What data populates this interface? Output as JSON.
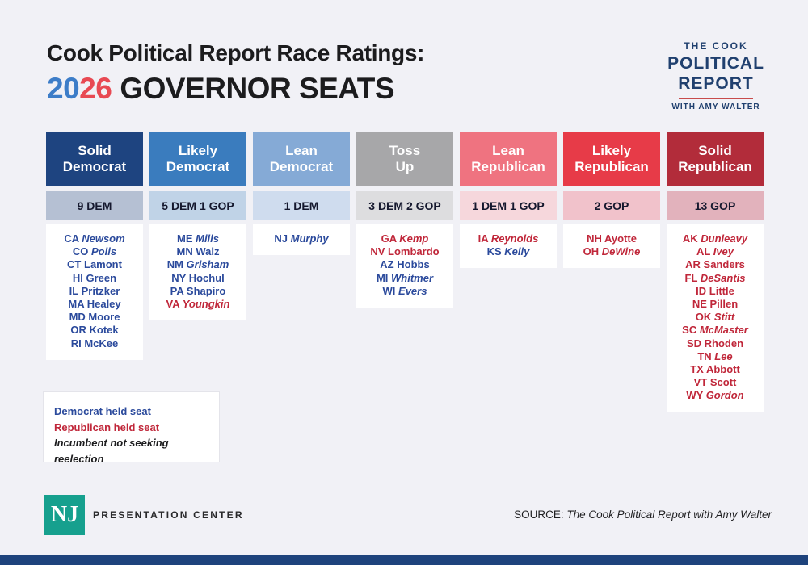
{
  "page": {
    "title_line1": "Cook Political Report Race Ratings:",
    "title_year_first": "20",
    "title_year_second": "26",
    "title_line2_rest": "GOVERNOR SEATS"
  },
  "brand_logo": {
    "line1": "THE COOK",
    "line2": "POLITICAL",
    "line3": "REPORT",
    "line4": "WITH AMY WALTER"
  },
  "palette": {
    "page_bg": "#f1f1f6",
    "dem_text": "#2b4a9c",
    "gop_text": "#c0273a",
    "year_blue": "#3d7dc8",
    "year_red": "#e84953",
    "logo_navy": "#20406f",
    "logo_rule_red": "#c84b4b",
    "nj_teal": "#16a08e",
    "bottom_bar_navy": "#1e437c"
  },
  "chart_data": {
    "type": "table",
    "title": "Cook Political Report Race Ratings: 2026 Governor Seats",
    "categories": [
      "Solid Democrat",
      "Likely Democrat",
      "Lean Democrat",
      "Toss Up",
      "Lean Republican",
      "Likely Republican",
      "Solid Republican"
    ],
    "seat_counts": [
      "9 DEM",
      "5 DEM 1 GOP",
      "1 DEM",
      "3 DEM 2 GOP",
      "1 DEM 1 GOP",
      "2 GOP",
      "13 GOP"
    ],
    "values": [
      9,
      6,
      1,
      5,
      2,
      2,
      13
    ],
    "columns": [
      {
        "label_line1": "Solid",
        "label_line2": "Democrat",
        "count": "9 DEM",
        "header_bg": "#1e4480",
        "count_bg": "#b5c0d3",
        "states": [
          {
            "abbr": "CA",
            "name": "Newsom",
            "party": "dem",
            "not_seeking_reelection": true
          },
          {
            "abbr": "CO",
            "name": "Polis",
            "party": "dem",
            "not_seeking_reelection": true
          },
          {
            "abbr": "CT",
            "name": "Lamont",
            "party": "dem",
            "not_seeking_reelection": false
          },
          {
            "abbr": "HI",
            "name": "Green",
            "party": "dem",
            "not_seeking_reelection": false
          },
          {
            "abbr": "IL",
            "name": "Pritzker",
            "party": "dem",
            "not_seeking_reelection": false
          },
          {
            "abbr": "MA",
            "name": "Healey",
            "party": "dem",
            "not_seeking_reelection": false
          },
          {
            "abbr": "MD",
            "name": "Moore",
            "party": "dem",
            "not_seeking_reelection": false
          },
          {
            "abbr": "OR",
            "name": "Kotek",
            "party": "dem",
            "not_seeking_reelection": false
          },
          {
            "abbr": "RI",
            "name": "McKee",
            "party": "dem",
            "not_seeking_reelection": false
          }
        ]
      },
      {
        "label_line1": "Likely",
        "label_line2": "Democrat",
        "count": "5 DEM 1 GOP",
        "header_bg": "#3a7cbe",
        "count_bg": "#c0d3e7",
        "states": [
          {
            "abbr": "ME",
            "name": "Mills",
            "party": "dem",
            "not_seeking_reelection": true
          },
          {
            "abbr": "MN",
            "name": "Walz",
            "party": "dem",
            "not_seeking_reelection": false
          },
          {
            "abbr": "NM",
            "name": "Grisham",
            "party": "dem",
            "not_seeking_reelection": true
          },
          {
            "abbr": "NY",
            "name": "Hochul",
            "party": "dem",
            "not_seeking_reelection": false
          },
          {
            "abbr": "PA",
            "name": "Shapiro",
            "party": "dem",
            "not_seeking_reelection": false
          },
          {
            "abbr": "VA",
            "name": "Youngkin",
            "party": "gop",
            "not_seeking_reelection": true
          }
        ]
      },
      {
        "label_line1": "Lean",
        "label_line2": "Democrat",
        "count": "1 DEM",
        "header_bg": "#85aad6",
        "count_bg": "#cfdcee",
        "states": [
          {
            "abbr": "NJ",
            "name": "Murphy",
            "party": "dem",
            "not_seeking_reelection": true
          }
        ]
      },
      {
        "label_line1": "Toss",
        "label_line2": "Up",
        "count": "3 DEM 2 GOP",
        "header_bg": "#a7a7a9",
        "count_bg": "#dddddf",
        "states": [
          {
            "abbr": "GA",
            "name": "Kemp",
            "party": "gop",
            "not_seeking_reelection": true
          },
          {
            "abbr": "NV",
            "name": "Lombardo",
            "party": "gop",
            "not_seeking_reelection": false
          },
          {
            "abbr": "AZ",
            "name": "Hobbs",
            "party": "dem",
            "not_seeking_reelection": false
          },
          {
            "abbr": "MI",
            "name": "Whitmer",
            "party": "dem",
            "not_seeking_reelection": true
          },
          {
            "abbr": "WI",
            "name": "Evers",
            "party": "dem",
            "not_seeking_reelection": true
          }
        ]
      },
      {
        "label_line1": "Lean",
        "label_line2": "Republican",
        "count": "1 DEM 1 GOP",
        "header_bg": "#ef7380",
        "count_bg": "#f6d7dc",
        "states": [
          {
            "abbr": "IA",
            "name": "Reynolds",
            "party": "gop",
            "not_seeking_reelection": true
          },
          {
            "abbr": "KS",
            "name": "Kelly",
            "party": "dem",
            "not_seeking_reelection": true
          }
        ]
      },
      {
        "label_line1": "Likely",
        "label_line2": "Republican",
        "count": "2 GOP",
        "header_bg": "#e73b48",
        "count_bg": "#f1c2cb",
        "states": [
          {
            "abbr": "NH",
            "name": "Ayotte",
            "party": "gop",
            "not_seeking_reelection": false
          },
          {
            "abbr": "OH",
            "name": "DeWine",
            "party": "gop",
            "not_seeking_reelection": true
          }
        ]
      },
      {
        "label_line1": "Solid",
        "label_line2": "Republican",
        "count": "13 GOP",
        "header_bg": "#b22c3a",
        "count_bg": "#e2b2bc",
        "states": [
          {
            "abbr": "AK",
            "name": "Dunleavy",
            "party": "gop",
            "not_seeking_reelection": true
          },
          {
            "abbr": "AL",
            "name": "Ivey",
            "party": "gop",
            "not_seeking_reelection": true
          },
          {
            "abbr": "AR",
            "name": "Sanders",
            "party": "gop",
            "not_seeking_reelection": false
          },
          {
            "abbr": "FL",
            "name": "DeSantis",
            "party": "gop",
            "not_seeking_reelection": true
          },
          {
            "abbr": "ID",
            "name": "Little",
            "party": "gop",
            "not_seeking_reelection": false
          },
          {
            "abbr": "NE",
            "name": "Pillen",
            "party": "gop",
            "not_seeking_reelection": false
          },
          {
            "abbr": "OK",
            "name": "Stitt",
            "party": "gop",
            "not_seeking_reelection": true
          },
          {
            "abbr": "SC",
            "name": "McMaster",
            "party": "gop",
            "not_seeking_reelection": true
          },
          {
            "abbr": "SD",
            "name": "Rhoden",
            "party": "gop",
            "not_seeking_reelection": false
          },
          {
            "abbr": "TN",
            "name": "Lee",
            "party": "gop",
            "not_seeking_reelection": true
          },
          {
            "abbr": "TX",
            "name": "Abbott",
            "party": "gop",
            "not_seeking_reelection": false
          },
          {
            "abbr": "VT",
            "name": "Scott",
            "party": "gop",
            "not_seeking_reelection": false
          },
          {
            "abbr": "WY",
            "name": "Gordon",
            "party": "gop",
            "not_seeking_reelection": true
          }
        ]
      }
    ]
  },
  "legend": {
    "dem": "Democrat held seat",
    "gop": "Republican held seat",
    "incumbent": "Incumbent not seeking reelection"
  },
  "footer": {
    "nj_monogram": "NJ",
    "presentation_center": "PRESENTATION CENTER",
    "source_prefix": "SOURCE: ",
    "source_name": "The Cook Political Report with Amy Walter"
  }
}
